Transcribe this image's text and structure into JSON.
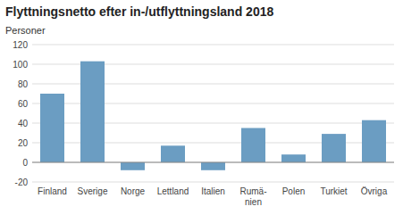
{
  "chart_data": {
    "type": "bar",
    "title": "Flyttningsnetto efter in-/utflyttningsland 2018",
    "y_label": "Personer",
    "categories": [
      "Finland",
      "Sverige",
      "Norge",
      "Lettland",
      "Italien",
      "Rumä-\nnien",
      "Polen",
      "Turkiet",
      "Övriga"
    ],
    "values": [
      70,
      103,
      -8,
      17,
      -8,
      35,
      8,
      29,
      43
    ],
    "color": "#6b9dc2",
    "ylim": [
      -20,
      120
    ],
    "yticks": [
      -20,
      0,
      20,
      40,
      60,
      80,
      100,
      120
    ],
    "grid": true
  }
}
